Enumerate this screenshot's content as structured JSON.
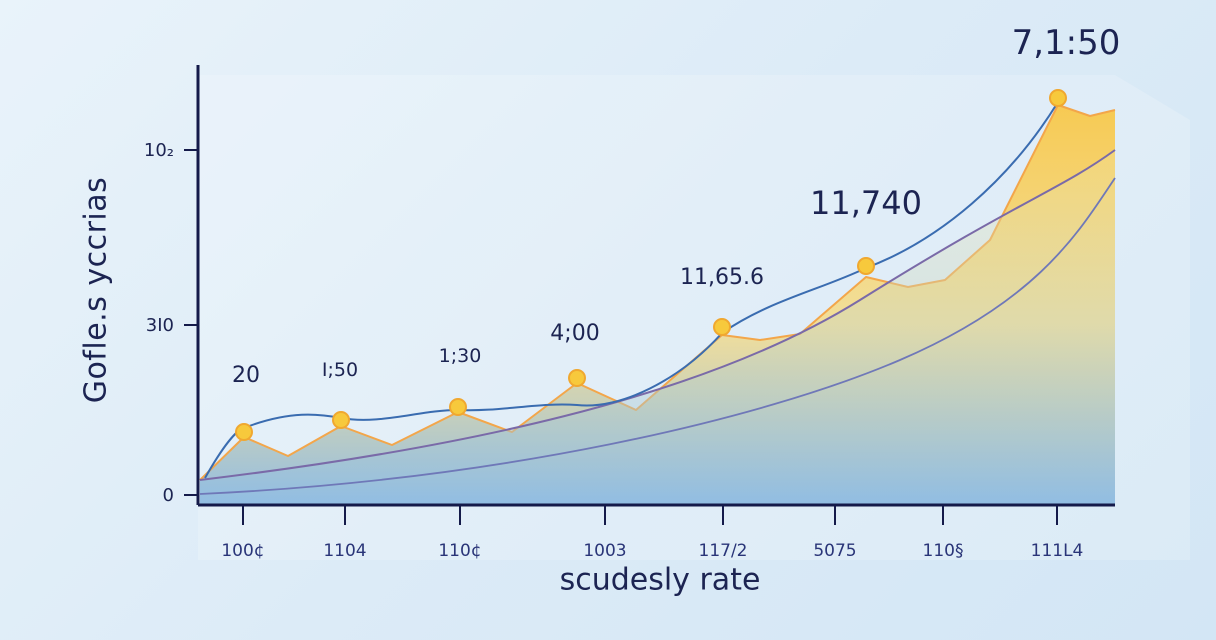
{
  "chart_data": {
    "type": "area",
    "ylabel": "Gofle.s yccrias",
    "xlabel": "scudesly rate",
    "categories": [
      "100¢",
      "1104",
      "110¢",
      "1003",
      "117/2",
      "5075",
      "110§",
      "111L4"
    ],
    "y_ticks": [
      "0",
      "3I0",
      "10₂"
    ],
    "data_labels": [
      "20",
      "I;50",
      "1;30",
      "4;00",
      "11,65.6",
      "11,740",
      "7,1:50"
    ],
    "grid": false,
    "colors": {
      "area_top": "#f8c84a",
      "area_bottom": "#8ab8e0",
      "area_edge": "#f3a64a",
      "marker": "#f7c93c",
      "line_blue": "#3a6cb0",
      "line_purple": "#7a6aa8",
      "axis": "#141a4a"
    }
  }
}
